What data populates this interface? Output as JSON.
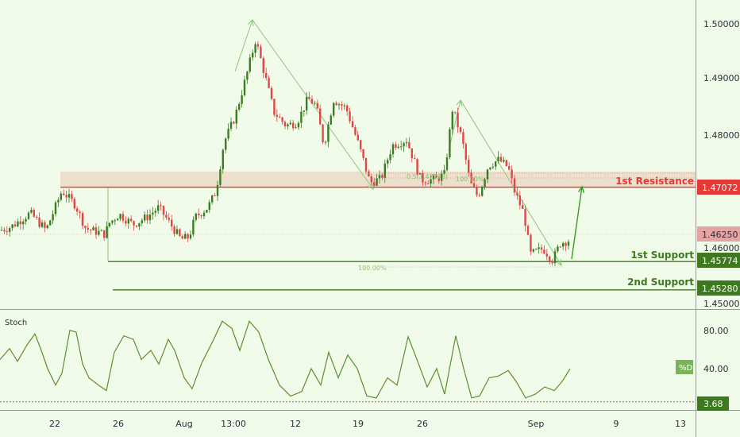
{
  "chart_data": [
    {
      "type": "candlestick",
      "ylim": [
        1.45,
        1.502
      ],
      "y_ticks": [
        "1.50000",
        "1.49000",
        "1.48000",
        "1.46000",
        "1.45000"
      ],
      "x_ticks": [
        "22",
        "26",
        "Aug",
        "13:00",
        "12",
        "19",
        "26",
        "Sep",
        "9",
        "13"
      ],
      "price_tags": {
        "resistance": "1.47072",
        "current": "1.46250",
        "support1": "1.45774",
        "support2": "1.45280"
      },
      "levels": {
        "resistance_value": 1.47072,
        "current_value": 1.4625,
        "support1_value": 1.45774,
        "support2_value": 1.4528
      },
      "annotations": {
        "resistance_label": "1st Resistance",
        "support1_label": "1st Support",
        "support2_label": "2nd Support",
        "fib_label": "0.5(1.47193)",
        "fib_100_top": "100.00%",
        "fib_100_bottom": "100.00%"
      },
      "colors": {
        "up": "#3c7d22",
        "down": "#e04848",
        "resistance": "#e53935",
        "support": "#3d7a1f",
        "zone": "#ebd9c6",
        "arrow": "#3d9a2a",
        "projection": "#8fc47a",
        "current_tag": "#e6a3a3"
      }
    },
    {
      "type": "line",
      "name": "Stoch",
      "ylim": [
        0,
        100
      ],
      "y_ticks": [
        "80.00",
        "40.00"
      ],
      "series_label": "%D",
      "last_value_tag": "3.68",
      "oversold_line": 3.68
    }
  ]
}
